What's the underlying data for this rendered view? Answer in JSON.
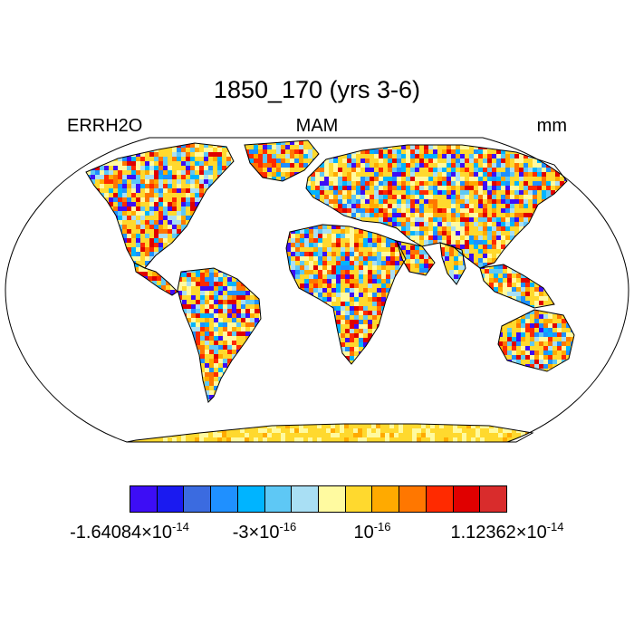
{
  "title": "1850_170 (yrs 3-6)",
  "variable": "ERRH2O",
  "season": "MAM",
  "units": "mm",
  "colorbar": {
    "colors": [
      "#3d0df5",
      "#1a1af0",
      "#3b6be0",
      "#1f90ff",
      "#00b4ff",
      "#5ec8f5",
      "#a9dff4",
      "#fffaa0",
      "#ffd92e",
      "#ffaa00",
      "#ff7700",
      "#ff2a00",
      "#e00000",
      "#d92c2c"
    ],
    "labels": [
      {
        "mantissa": "-1.64084",
        "exponent": "-14"
      },
      {
        "mantissa": "-3",
        "exponent": "-16"
      },
      {
        "mantissa": "",
        "exponent": "-16"
      },
      {
        "mantissa": "1.12362",
        "exponent": "-14"
      }
    ]
  },
  "map_style": {
    "projection": "Robinson",
    "land_colors": [
      "#ffd92e",
      "#ffd92e",
      "#fffaa0",
      "#ffaa00",
      "#ffd92e",
      "#a9dff4",
      "#ff7700",
      "#5ec8f5",
      "#1f90ff",
      "#ff2a00",
      "#3d0df5",
      "#e00000",
      "#fffaa0",
      "#ffd92e",
      "#00b4ff"
    ],
    "coastline_color": "#000000",
    "ocean_color": "#ffffff"
  }
}
